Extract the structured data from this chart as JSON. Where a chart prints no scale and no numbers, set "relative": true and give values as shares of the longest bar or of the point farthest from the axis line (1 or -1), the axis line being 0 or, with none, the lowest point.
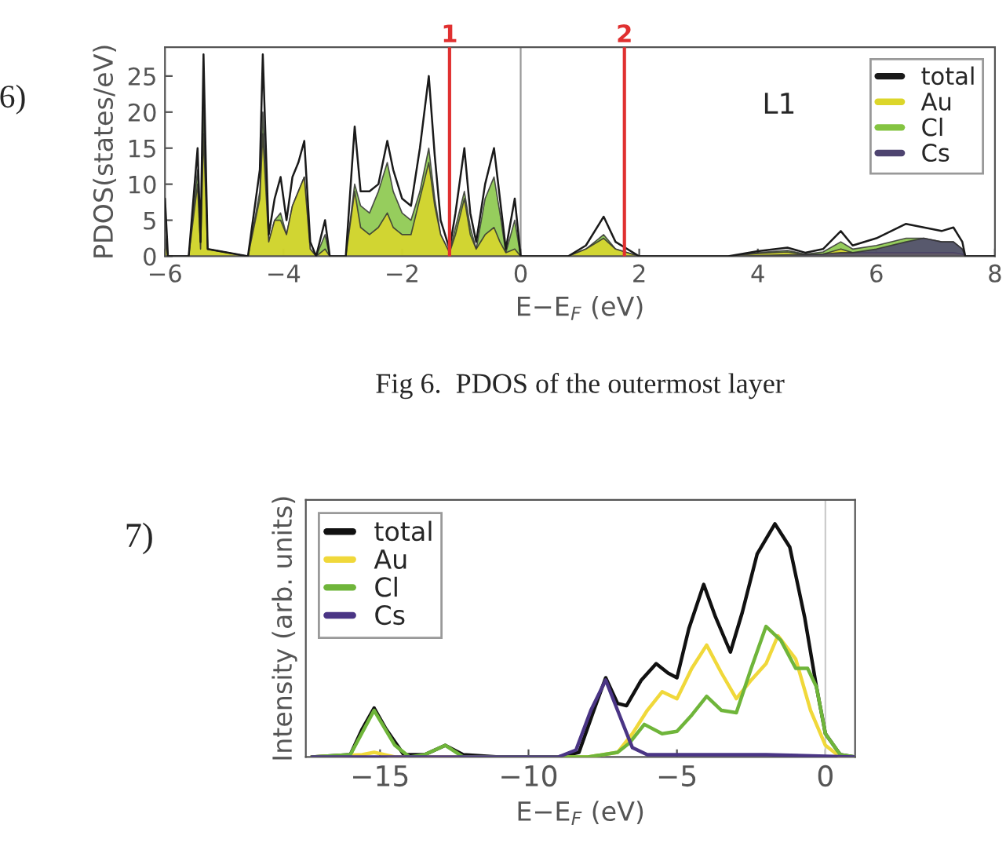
{
  "chart_data": [
    {
      "type": "area",
      "xlabel": "E−E$_{F}$ (eV)",
      "ylabel": "PDOS(states/eV)",
      "x": [
        -6.0,
        -5.95,
        -5.6,
        -5.45,
        -5.4,
        -5.35,
        -5.28,
        -4.6,
        -4.4,
        -4.35,
        -4.25,
        -4.15,
        -4.05,
        -3.95,
        -3.85,
        -3.75,
        -3.65,
        -3.55,
        -3.45,
        -3.3,
        -3.22,
        -2.95,
        -2.8,
        -2.7,
        -2.55,
        -2.4,
        -2.25,
        -2.15,
        -2.0,
        -1.85,
        -1.7,
        -1.55,
        -1.45,
        -1.35,
        -1.2,
        -1.1,
        -0.95,
        -0.85,
        -0.75,
        -0.6,
        -0.45,
        -0.35,
        -0.25,
        -0.1,
        0.0,
        0.8,
        1.1,
        1.4,
        1.6,
        2.0,
        3.5,
        4.0,
        4.5,
        4.8,
        5.1,
        5.4,
        5.6,
        6.0,
        6.5,
        6.8,
        7.1,
        7.3,
        7.45,
        7.5,
        8.0
      ],
      "series": [
        {
          "name": "total",
          "type": "line",
          "color": "#1a1a1a",
          "values": [
            8,
            0,
            0,
            15,
            2,
            28,
            1,
            0,
            12,
            28,
            3,
            8,
            11,
            5,
            11,
            13,
            16,
            2,
            0,
            5,
            0,
            0,
            18,
            9,
            9,
            10,
            16,
            12,
            8,
            7,
            15,
            25,
            14,
            5,
            1,
            6,
            15,
            6,
            2,
            10,
            15,
            8,
            1,
            8,
            0,
            0,
            1.5,
            5.5,
            2,
            0,
            0,
            0.7,
            1.2,
            0.5,
            1,
            3.5,
            1.5,
            2.5,
            4.5,
            4,
            3.5,
            4,
            2,
            0,
            0
          ]
        },
        {
          "name": "Au",
          "color": "#dcd62a",
          "values": [
            2,
            0,
            0,
            10,
            1,
            17,
            1,
            0,
            8,
            17,
            2,
            5,
            5,
            3,
            7,
            9,
            11,
            1,
            0,
            1,
            0,
            0,
            9,
            4,
            3,
            4,
            6,
            4,
            3,
            3,
            8,
            13,
            7,
            3,
            0.5,
            3,
            8,
            3,
            1,
            3,
            4,
            2,
            0.5,
            1,
            0,
            0,
            1,
            2.5,
            1,
            0,
            0,
            0.4,
            0.6,
            0.2,
            0.3,
            1,
            0.5,
            0.5,
            0.5,
            0.5,
            0.5,
            0.5,
            0.3,
            0,
            0
          ]
        },
        {
          "name": "Cl",
          "color": "#84c441",
          "values": [
            3,
            0,
            0,
            12,
            1,
            21,
            1,
            0,
            9,
            20,
            2,
            5,
            6,
            3,
            7,
            9,
            11,
            1,
            0,
            3,
            0,
            0,
            10,
            7,
            6,
            9,
            13,
            9,
            6,
            5,
            9,
            15,
            8,
            3,
            0.5,
            4,
            9,
            4,
            1,
            8,
            11,
            6,
            0.5,
            5,
            0,
            0,
            1,
            3,
            1,
            0,
            0,
            0.5,
            0.8,
            0.3,
            0.6,
            2,
            1,
            1.5,
            2.5,
            2.5,
            2,
            2,
            1,
            0,
            0
          ]
        },
        {
          "name": "Cs",
          "color": "#4e4470",
          "values": [
            0,
            0,
            0,
            0,
            0,
            0,
            0,
            0,
            0,
            0,
            0,
            0,
            0,
            0,
            0,
            0,
            0,
            0,
            0,
            0,
            0,
            0,
            0,
            0,
            0,
            0,
            0,
            0,
            0,
            0,
            0,
            0,
            0,
            0,
            0,
            0,
            0,
            0,
            0,
            0,
            0,
            0,
            0,
            0,
            0,
            0,
            0,
            0,
            0,
            0,
            0,
            0.1,
            0.2,
            0.2,
            0.3,
            0.5,
            0.5,
            1,
            2,
            2.5,
            2,
            2,
            1,
            0,
            0
          ]
        }
      ],
      "xlim": [
        -6,
        8
      ],
      "xticks": [
        -6,
        -4,
        -2,
        0,
        2,
        4,
        6,
        8
      ],
      "ylim": [
        0,
        29
      ],
      "yticks": [
        0,
        5,
        10,
        15,
        20,
        25
      ],
      "ref_lines": [
        {
          "axis": "x",
          "value": 0,
          "color": "#999999"
        },
        {
          "axis": "x",
          "value": -1.2,
          "color": "#e03030"
        },
        {
          "axis": "x",
          "value": 1.75,
          "color": "#e03030"
        }
      ],
      "annotations": [
        "L1",
        "6)",
        "Fig 6.  PDOS of the outermost layer",
        {
          "text": "1",
          "x": -1.2,
          "y": 29
        },
        {
          "text": "2",
          "x": 1.75,
          "y": 29
        }
      ],
      "legend": "top right",
      "grid": false
    },
    {
      "type": "line",
      "relative": true,
      "xlabel": "E−E$_{F}$ (eV)",
      "ylabel": "Intensity (arb. units)",
      "series": [
        {
          "name": "total",
          "color": "#111111",
          "x": [
            -17.3,
            -16,
            -15.6,
            -15.2,
            -14.8,
            -14.2,
            -13.5,
            -12.8,
            -12.2,
            -11,
            -9,
            -8.3,
            -7.8,
            -7.4,
            -7.0,
            -6.7,
            -6.2,
            -5.7,
            -5.3,
            -5.0,
            -4.6,
            -4.1,
            -3.7,
            -3.2,
            -2.8,
            -2.3,
            -1.7,
            -1.2,
            -0.7,
            -0.3,
            0,
            0.5,
            1
          ],
          "values": [
            0,
            0.01,
            0.12,
            0.21,
            0.12,
            0.01,
            0.01,
            0.05,
            0.01,
            0,
            0,
            0.02,
            0.2,
            0.34,
            0.23,
            0.22,
            0.33,
            0.4,
            0.36,
            0.34,
            0.55,
            0.74,
            0.6,
            0.45,
            0.62,
            0.87,
            1.0,
            0.9,
            0.6,
            0.3,
            0.1,
            0.01,
            0
          ]
        },
        {
          "name": "Au",
          "color": "#f0d83a",
          "x": [
            -17.3,
            -15.6,
            -15.2,
            -14.5,
            -8,
            -7,
            -6.5,
            -6,
            -5.5,
            -5.0,
            -4.5,
            -4.0,
            -3.5,
            -3.0,
            -2.5,
            -2.0,
            -1.6,
            -1.0,
            -0.5,
            0,
            0.5,
            1
          ],
          "values": [
            0,
            0.01,
            0.02,
            0,
            0,
            0.02,
            0.1,
            0.2,
            0.28,
            0.25,
            0.38,
            0.48,
            0.36,
            0.25,
            0.33,
            0.4,
            0.52,
            0.42,
            0.2,
            0.05,
            0,
            0
          ]
        },
        {
          "name": "Cl",
          "color": "#6fb53a",
          "x": [
            -17.3,
            -16,
            -15.2,
            -14.5,
            -14,
            -13.5,
            -12.8,
            -12.2,
            -8,
            -7,
            -6.6,
            -6.1,
            -5.5,
            -5.0,
            -4.5,
            -4.0,
            -3.5,
            -3.0,
            -2.5,
            -2.0,
            -1.5,
            -1.0,
            -0.6,
            -0.3,
            0,
            0.5,
            1
          ],
          "values": [
            0,
            0.01,
            0.2,
            0.05,
            0,
            0.01,
            0.05,
            0,
            0,
            0.02,
            0.06,
            0.14,
            0.1,
            0.11,
            0.18,
            0.26,
            0.2,
            0.19,
            0.38,
            0.56,
            0.5,
            0.38,
            0.38,
            0.3,
            0.1,
            0.01,
            0
          ]
        },
        {
          "name": "Cs",
          "color": "#4a3585",
          "x": [
            -17.3,
            -9,
            -8.4,
            -7.9,
            -7.4,
            -7.0,
            -6.5,
            -6,
            -2,
            1
          ],
          "values": [
            0,
            0,
            0.03,
            0.2,
            0.33,
            0.2,
            0.04,
            0.01,
            0.01,
            0
          ]
        }
      ],
      "xlim": [
        -17.5,
        1
      ],
      "xticks": [
        -15,
        -10,
        -5,
        0
      ],
      "ref_lines": [
        {
          "axis": "x",
          "value": 0,
          "color": "#cccccc"
        }
      ],
      "annotations": [
        "7)"
      ],
      "legend": "top left",
      "grid": false
    }
  ]
}
